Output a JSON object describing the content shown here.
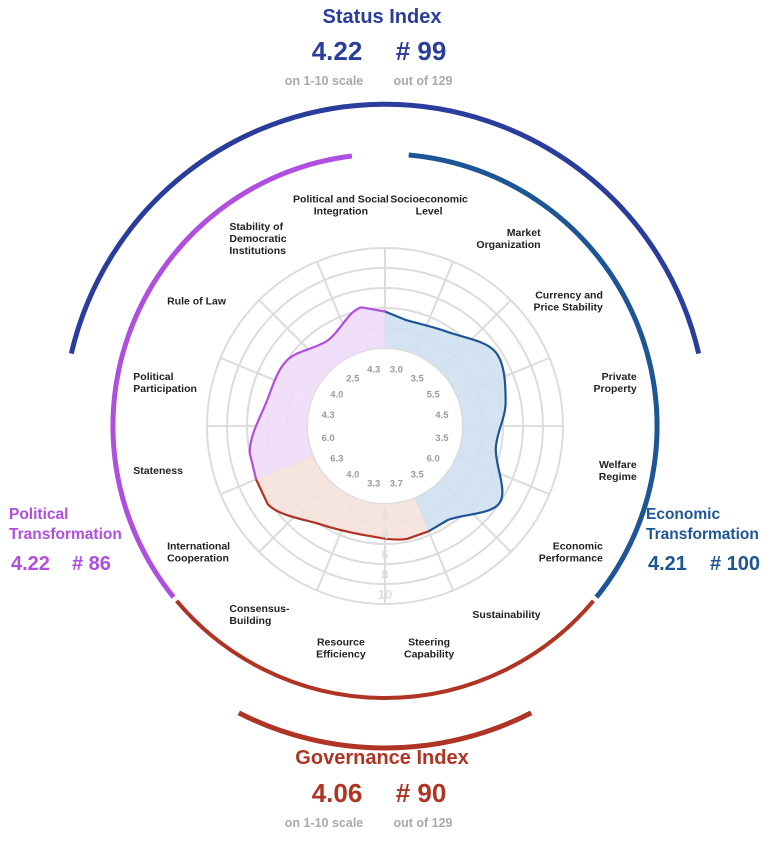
{
  "status_index": {
    "title": "Status Index",
    "score": "4.22",
    "rank": "# 99",
    "score_caption": "on 1-10 scale",
    "rank_caption": "out of 129",
    "color": "#2a3d9c"
  },
  "governance_index": {
    "title": "Governance Index",
    "score": "4.06",
    "rank": "# 90",
    "score_caption": "on 1-10 scale",
    "rank_caption": "out of 129",
    "color": "#b03424"
  },
  "political_transformation": {
    "title_line1": "Political",
    "title_line2": "Transformation",
    "score": "4.22",
    "rank": "# 86",
    "color": "#b04ee0"
  },
  "economic_transformation": {
    "title_line1": "Economic",
    "title_line2": "Transformation",
    "score": "4.21",
    "rank": "# 100",
    "color": "#1e5596"
  },
  "chart_data": {
    "type": "radar",
    "scale_labels": [
      "2",
      "4",
      "6",
      "8",
      "10"
    ],
    "rlim": [
      0,
      10
    ],
    "categories": [
      {
        "label": [
          "Socioeconomic",
          "Level"
        ],
        "value": 3.0,
        "group": "economic"
      },
      {
        "label": [
          "Market",
          "Organization"
        ],
        "value": 3.5,
        "group": "economic"
      },
      {
        "label": [
          "Currency and",
          "Price Stability"
        ],
        "value": 5.5,
        "group": "economic"
      },
      {
        "label": [
          "Private",
          "Property"
        ],
        "value": 4.5,
        "group": "economic"
      },
      {
        "label": [
          "Welfare",
          "Regime"
        ],
        "value": 3.5,
        "group": "economic"
      },
      {
        "label": [
          "Economic",
          "Performance"
        ],
        "value": 6.0,
        "group": "economic"
      },
      {
        "label": [
          "Sustainability"
        ],
        "value": 3.5,
        "group": "economic"
      },
      {
        "label": [
          "Steering",
          "Capability"
        ],
        "value": 3.7,
        "group": "governance"
      },
      {
        "label": [
          "Resource",
          "Efficiency"
        ],
        "value": 3.3,
        "group": "governance"
      },
      {
        "label": [
          "Consensus-",
          "Building"
        ],
        "value": 4.0,
        "group": "governance"
      },
      {
        "label": [
          "International",
          "Cooperation"
        ],
        "value": 6.3,
        "group": "governance"
      },
      {
        "label": [
          "Stateness"
        ],
        "value": 6.0,
        "group": "political"
      },
      {
        "label": [
          "Political",
          "Participation"
        ],
        "value": 4.3,
        "group": "political"
      },
      {
        "label": [
          "Rule of Law"
        ],
        "value": 4.0,
        "group": "political"
      },
      {
        "label": [
          "Stability of",
          "Democratic",
          "Institutions"
        ],
        "value": 2.5,
        "group": "political"
      },
      {
        "label": [
          "Political and Social",
          "Integration"
        ],
        "value": 4.3,
        "group": "political"
      }
    ],
    "value_labels": [
      "3.0",
      "3.5",
      "5.5",
      "4.5",
      "3.5",
      "6.0",
      "3.5",
      "3.7",
      "3.3",
      "4.0",
      "6.3",
      "6.0",
      "4.3",
      "4.0",
      "2.5",
      "4.3"
    ],
    "colors": {
      "economic_line": "#1e5596",
      "economic_fill": "#cfe0f1",
      "political_line": "#b04ee0",
      "political_fill": "#f0dcfa",
      "governance_line": "#b03424",
      "governance_fill": "#f5e1dc",
      "grid": "#dcdcdc",
      "scale_text": "#e0e0e0",
      "value_text": "#9b9b9b",
      "label_text": "#222222"
    }
  }
}
